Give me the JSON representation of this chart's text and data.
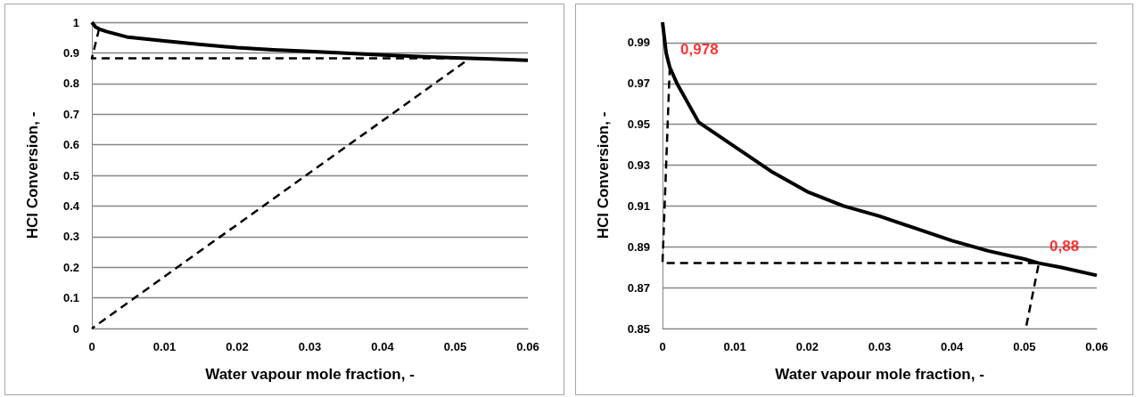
{
  "chart_data": [
    {
      "type": "line",
      "xlabel": "Water vapour mole fraction, -",
      "ylabel": "HCl Conversion, -",
      "xlim": [
        0,
        0.06
      ],
      "xticks": [
        0,
        0.01,
        0.02,
        0.03,
        0.04,
        0.05,
        0.06
      ],
      "ylim": [
        0,
        1
      ],
      "yticks": [
        0,
        0.1,
        0.2,
        0.3,
        0.4,
        0.5,
        0.6,
        0.7,
        0.8,
        0.9,
        1
      ],
      "grid": "y",
      "marker": "none",
      "series": [
        {
          "color": "#000000",
          "line_style": "solid",
          "x": [
            0,
            0.0005,
            0.001,
            0.002,
            0.005,
            0.01,
            0.015,
            0.02,
            0.025,
            0.03,
            0.035,
            0.04,
            0.045,
            0.05,
            0.052,
            0.055,
            0.06
          ],
          "values": [
            1.0,
            0.985,
            0.978,
            0.97,
            0.951,
            0.939,
            0.927,
            0.917,
            0.91,
            0.905,
            0.899,
            0.893,
            0.888,
            0.884,
            0.882,
            0.88,
            0.876
          ]
        },
        {
          "color": "#000000",
          "line_style": "dashed",
          "x": [
            0.001,
            0,
            0.052,
            0
          ],
          "values": [
            0.978,
            0.882,
            0.882,
            0
          ]
        }
      ]
    },
    {
      "type": "line",
      "xlabel": "Water vapour mole fraction, -",
      "ylabel": "HCl Conversion, -",
      "xlim": [
        0,
        0.06
      ],
      "xticks": [
        0,
        0.01,
        0.02,
        0.03,
        0.04,
        0.05,
        0.06
      ],
      "ylim": [
        0.85,
        1
      ],
      "yticks": [
        0.85,
        0.87,
        0.89,
        0.91,
        0.93,
        0.95,
        0.97,
        0.99
      ],
      "grid": "y",
      "marker": "none",
      "annotations": [
        {
          "text": "0,978",
          "x": 0.001,
          "y": 0.978
        },
        {
          "text": "0,88",
          "x": 0.052,
          "y": 0.882
        }
      ],
      "series": [
        {
          "color": "#000000",
          "line_style": "solid",
          "x": [
            0,
            0.0005,
            0.001,
            0.002,
            0.005,
            0.01,
            0.015,
            0.02,
            0.025,
            0.03,
            0.035,
            0.04,
            0.045,
            0.05,
            0.052,
            0.055,
            0.06
          ],
          "values": [
            1.0,
            0.985,
            0.978,
            0.97,
            0.951,
            0.939,
            0.927,
            0.917,
            0.91,
            0.905,
            0.899,
            0.893,
            0.888,
            0.884,
            0.882,
            0.88,
            0.876
          ]
        },
        {
          "color": "#000000",
          "line_style": "dashed",
          "x": [
            0.001,
            0,
            0.052,
            0.0502
          ],
          "values": [
            0.978,
            0.882,
            0.882,
            0.85
          ]
        }
      ]
    }
  ]
}
